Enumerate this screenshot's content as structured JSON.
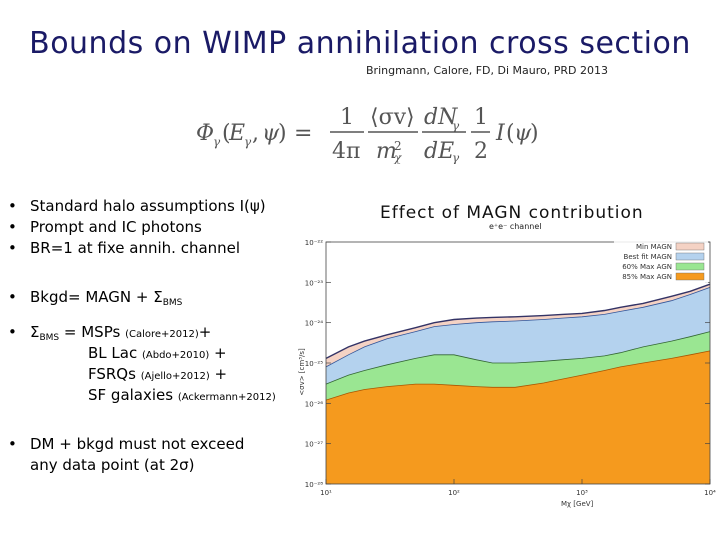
{
  "slide": {
    "title": "Bounds on WIMP annihilation cross section",
    "citation": "Bringmann, Calore, FD, Di Mauro, PRD 2013"
  },
  "bullets": {
    "b1": "Standard halo assumptions I(ψ)",
    "b2": "Prompt and IC photons",
    "b3": "BR=1 at fixe  annih. channel",
    "b4_main": "Bkgd= MAGN + Σ",
    "b4_sub": "BMS",
    "b5_sigma": "Σ",
    "b5_sub": "BMS",
    "b5_eq": " = MSPs ",
    "b5_ref1": "(Calore+2012)",
    "b5_plus": "+",
    "l1_name": "BL Lac ",
    "l1_ref": "(Abdo+2010)",
    "l1_plus": " +",
    "l2_name": "FSRQs ",
    "l2_ref": "(Ajello+2012)",
    "l2_plus": " +",
    "l3_name": "SF galaxies ",
    "l3_ref": "(Ackermann+2012)",
    "b6_line1": "DM + bkgd must not exceed",
    "b6_line2": "any data point (at 2σ)"
  },
  "figure": {
    "heading": "Effect of MAGN contribution",
    "channel_label": "e⁺e⁻ channel"
  },
  "chart_data": {
    "type": "area",
    "title": "",
    "xlabel": "Mχ [GeV]",
    "ylabel": "<σv> [cm³/s]",
    "x_scale": "log",
    "y_scale": "log",
    "xlim": [
      10,
      10000
    ],
    "ylim": [
      1e-28,
      1e-22
    ],
    "x_ticks": [
      10,
      100,
      1000,
      10000
    ],
    "x_tick_labels": [
      "10¹",
      "10²",
      "10³",
      "10⁴"
    ],
    "y_ticks": [
      1e-28,
      1e-27,
      1e-26,
      1e-25,
      1e-24,
      1e-23,
      1e-22
    ],
    "y_tick_labels": [
      "10⁻²⁸",
      "10⁻²⁷",
      "10⁻²⁶",
      "10⁻²⁵",
      "10⁻²⁴",
      "10⁻²³",
      "10⁻²²"
    ],
    "legend_position": "top-right",
    "x": [
      10,
      15,
      20,
      30,
      50,
      70,
      100,
      150,
      200,
      300,
      500,
      700,
      1000,
      1500,
      2000,
      3000,
      5000,
      7000,
      10000
    ],
    "series": [
      {
        "name": "Min MAGN",
        "color": "#f4d2c4",
        "values": [
          1.3e-25,
          2.5e-25,
          3.5e-25,
          5e-25,
          7.5e-25,
          1e-24,
          1.2e-24,
          1.3e-24,
          1.35e-24,
          1.4e-24,
          1.5e-24,
          1.6e-24,
          1.7e-24,
          2e-24,
          2.4e-24,
          3e-24,
          4.5e-24,
          6e-24,
          9e-24
        ]
      },
      {
        "name": "Best fit MAGN",
        "color": "#b4d2ee",
        "values": [
          8e-26,
          1.6e-25,
          2.5e-25,
          4e-25,
          6e-25,
          8e-25,
          9e-25,
          1e-24,
          1.05e-24,
          1.1e-24,
          1.2e-24,
          1.3e-24,
          1.4e-24,
          1.6e-24,
          1.9e-24,
          2.4e-24,
          3.5e-24,
          5e-24,
          7.5e-24
        ]
      },
      {
        "name": "60% Max AGN",
        "color": "#9ae692",
        "values": [
          3e-26,
          5e-26,
          6.5e-26,
          9e-26,
          1.3e-25,
          1.6e-25,
          1.6e-25,
          1.2e-25,
          1e-25,
          1e-25,
          1.1e-25,
          1.2e-25,
          1.3e-25,
          1.5e-25,
          1.8e-25,
          2.5e-25,
          3.5e-25,
          4.5e-25,
          6e-25
        ]
      },
      {
        "name": "85% Max AGN",
        "color": "#f59a1e",
        "values": [
          1.2e-26,
          1.8e-26,
          2.2e-26,
          2.6e-26,
          3e-26,
          3e-26,
          2.8e-26,
          2.6e-26,
          2.5e-26,
          2.5e-26,
          3.2e-26,
          4e-26,
          5e-26,
          6.5e-26,
          8e-26,
          1e-25,
          1.3e-25,
          1.6e-25,
          2e-25
        ]
      }
    ]
  }
}
